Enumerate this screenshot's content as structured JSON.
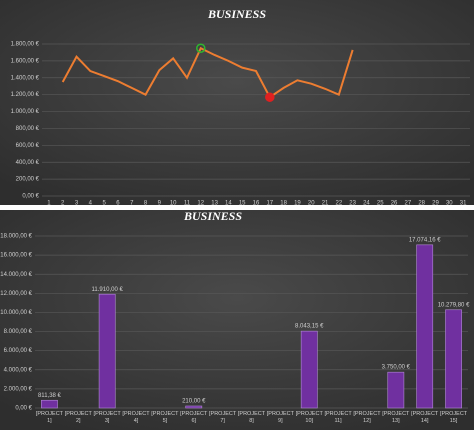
{
  "chart_data": [
    {
      "type": "line",
      "title": "BUSINESS",
      "x": [
        1,
        2,
        3,
        4,
        5,
        6,
        7,
        8,
        9,
        10,
        11,
        12,
        13,
        14,
        15,
        16,
        17,
        18,
        19,
        20,
        21,
        22,
        23,
        24,
        25,
        26,
        27,
        28,
        29,
        30,
        31
      ],
      "series": [
        {
          "color": "#ed7d31",
          "values": [
            null,
            1350,
            1650,
            1480,
            1420,
            1360,
            1280,
            1200,
            1490,
            1630,
            1400,
            1750,
            1670,
            1600,
            1520,
            1480,
            1170,
            1280,
            1370,
            1330,
            1270,
            1200,
            1730,
            null,
            null,
            null,
            null,
            null,
            null,
            null,
            null
          ]
        }
      ],
      "ylim": [
        0,
        1800
      ],
      "yticks": [
        {
          "value": 0,
          "label": "0,00 €"
        },
        {
          "value": 200,
          "label": "200,00 €"
        },
        {
          "value": 400,
          "label": "400,00 €"
        },
        {
          "value": 600,
          "label": "600,00 €"
        },
        {
          "value": 800,
          "label": "800,00 €"
        },
        {
          "value": 1000,
          "label": "1.000,00 €"
        },
        {
          "value": 1200,
          "label": "1.200,00 €"
        },
        {
          "value": 1400,
          "label": "1.400,00 €"
        },
        {
          "value": 1600,
          "label": "1.600,00 €"
        },
        {
          "value": 1800,
          "label": "1.800,00 €"
        }
      ],
      "grid": true,
      "max_marker_color": "#2eb82e",
      "min_marker_color": "#e02020"
    },
    {
      "type": "bar",
      "title": "BUSINESS",
      "categories": [
        "[PROJECT 1]",
        "[PROJECT 2]",
        "[PROJECT 3]",
        "[PROJECT 4]",
        "[PROJECT 5]",
        "[PROJECT 6]",
        "[PROJECT 7]",
        "[PROJECT 8]",
        "[PROJECT 9]",
        "[PROJECT 10]",
        "[PROJECT 11]",
        "[PROJECT 12]",
        "[PROJECT 13]",
        "[PROJECT 14]",
        "[PROJECT 15]"
      ],
      "values": [
        811.38,
        null,
        11910,
        null,
        null,
        210,
        null,
        null,
        null,
        8043.15,
        null,
        null,
        3750,
        17074.16,
        10279.8
      ],
      "value_labels": [
        "811,38 €",
        null,
        "11.910,00 €",
        null,
        null,
        "210,00 €",
        null,
        null,
        null,
        "8.043,15 €",
        null,
        null,
        "3.750,00 €",
        "17.074,16 €",
        "10.279,80 €"
      ],
      "color": "#7030a0",
      "ylim": [
        0,
        18000
      ],
      "yticks": [
        {
          "value": 0,
          "label": "0,00 €"
        },
        {
          "value": 2000,
          "label": "2.000,00 €"
        },
        {
          "value": 4000,
          "label": "4.000,00 €"
        },
        {
          "value": 6000,
          "label": "6.000,00 €"
        },
        {
          "value": 8000,
          "label": "8.000,00 €"
        },
        {
          "value": 10000,
          "label": "10.000,00 €"
        },
        {
          "value": 12000,
          "label": "12.000,00 €"
        },
        {
          "value": 14000,
          "label": "14.000,00 €"
        },
        {
          "value": 16000,
          "label": "16.000,00 €"
        },
        {
          "value": 18000,
          "label": "18.000,00 €"
        }
      ],
      "grid": true
    }
  ]
}
